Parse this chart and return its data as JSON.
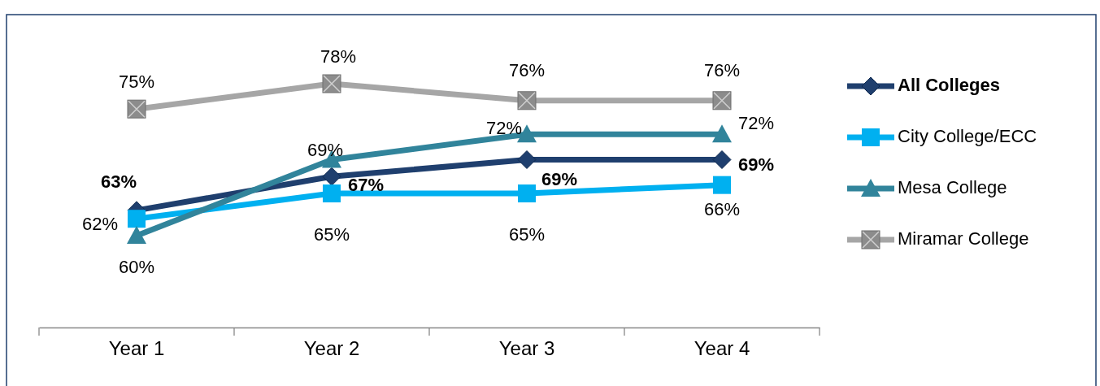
{
  "chart_data": {
    "type": "line",
    "categories": [
      "Year 1",
      "Year 2",
      "Year 3",
      "Year 4"
    ],
    "tick_labels": "x",
    "legend": "right",
    "series": [
      {
        "name": "All Colleges",
        "color": "#1f3f6e",
        "marker": "diamond",
        "values": [
          63,
          67,
          69,
          69
        ],
        "value_labels": [
          "63%",
          "67%",
          "69%",
          "69%"
        ]
      },
      {
        "name": "City College/ECC",
        "color": "#00b0f0",
        "marker": "square",
        "values": [
          62,
          65,
          65,
          66
        ],
        "value_labels": [
          "62%",
          "65%",
          "65%",
          "66%"
        ]
      },
      {
        "name": "Mesa College",
        "color": "#31849b",
        "marker": "triangle",
        "values": [
          60,
          69,
          72,
          72
        ],
        "value_labels": [
          "60%",
          "69%",
          "72%",
          "72%"
        ]
      },
      {
        "name": "Miramar College",
        "color": "#a6a6a6",
        "marker": "square",
        "values": [
          75,
          78,
          76,
          76
        ],
        "value_labels": [
          "75%",
          "78%",
          "76%",
          "76%"
        ]
      }
    ]
  }
}
